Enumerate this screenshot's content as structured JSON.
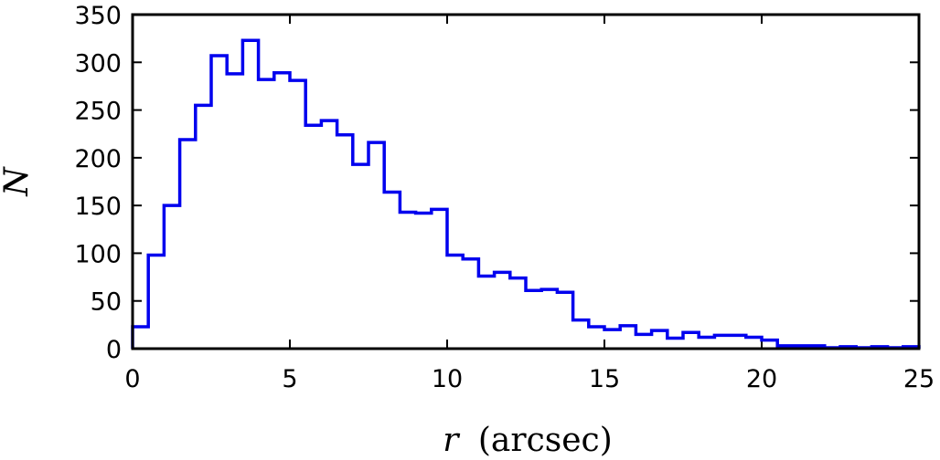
{
  "chart_data": {
    "type": "histogram",
    "xlabel_var": "r",
    "xlabel_unit": "(arcsec)",
    "ylabel": "N",
    "xlim": [
      0,
      25
    ],
    "ylim": [
      0,
      350
    ],
    "grid": false,
    "legend": "none",
    "line_color": "#0000ee",
    "x_ticks": [
      0,
      5,
      10,
      15,
      20,
      25
    ],
    "y_ticks": [
      0,
      50,
      100,
      150,
      200,
      250,
      300,
      350
    ],
    "bin_width": 0.5,
    "bin_start": 0,
    "counts": [
      23,
      98,
      150,
      219,
      255,
      307,
      288,
      323,
      282,
      289,
      281,
      234,
      239,
      224,
      193,
      216,
      164,
      143,
      142,
      146,
      98,
      94,
      76,
      80,
      74,
      61,
      62,
      59,
      30,
      23,
      20,
      24,
      15,
      19,
      11,
      17,
      12,
      14,
      14,
      12,
      9,
      3,
      3,
      3,
      1,
      2,
      1,
      2,
      1,
      2
    ]
  }
}
